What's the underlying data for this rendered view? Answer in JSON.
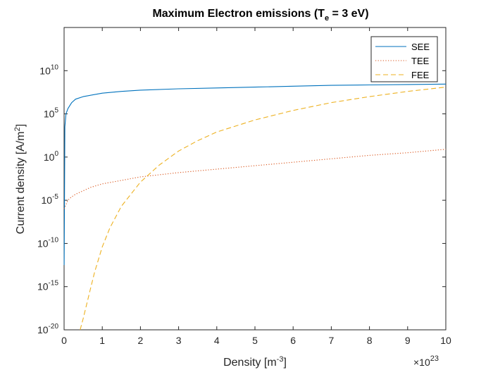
{
  "chart_data": {
    "type": "line",
    "title": {
      "main": "Maximum Electron emissions (T",
      "sub": "e",
      "rest": " = 3 eV)"
    },
    "xlabel": {
      "text": "Density [m",
      "sup": "-3",
      "end": "]"
    },
    "ylabel": {
      "text": "Current density [A/m",
      "sup": "2",
      "end": "]"
    },
    "x_multiplier": {
      "base": "×10",
      "exp": "23"
    },
    "xlim": [
      0,
      10
    ],
    "ylim_log10": [
      -20,
      15
    ],
    "y_scale": "log",
    "grid": false,
    "legend_position": "top-right",
    "x_ticks": [
      0,
      1,
      2,
      3,
      4,
      5,
      6,
      7,
      8,
      9,
      10
    ],
    "y_ticks": [
      {
        "base": "10",
        "exp": "-20",
        "value": -20
      },
      {
        "base": "10",
        "exp": "-15",
        "value": -15
      },
      {
        "base": "10",
        "exp": "-10",
        "value": -10
      },
      {
        "base": "10",
        "exp": "-5",
        "value": -5
      },
      {
        "base": "10",
        "exp": "0",
        "value": 0
      },
      {
        "base": "10",
        "exp": "5",
        "value": 5
      },
      {
        "base": "10",
        "exp": "10",
        "value": 10
      }
    ],
    "series": [
      {
        "name": "SEE",
        "color": "#0072BD",
        "dash": "solid",
        "x": [
          0.001,
          0.02,
          0.05,
          0.1,
          0.2,
          0.3,
          0.5,
          1,
          1.5,
          2,
          3,
          4,
          5,
          6,
          7,
          8,
          9,
          10
        ],
        "log10_y": [
          -12.5,
          3.5,
          5.0,
          5.6,
          6.3,
          6.7,
          7.0,
          7.4,
          7.6,
          7.75,
          7.9,
          8.0,
          8.1,
          8.2,
          8.3,
          8.35,
          8.4,
          8.45
        ]
      },
      {
        "name": "TEE",
        "color": "#D95319",
        "dash": "dotted",
        "x": [
          0.001,
          0.05,
          0.1,
          0.2,
          0.3,
          0.5,
          0.7,
          1,
          1.5,
          2,
          3,
          4,
          5,
          6,
          7,
          8,
          9,
          10
        ],
        "log10_y": [
          -6.0,
          -5.5,
          -5.0,
          -4.6,
          -4.3,
          -3.9,
          -3.5,
          -3.1,
          -2.7,
          -2.3,
          -1.8,
          -1.4,
          -1.0,
          -0.6,
          -0.2,
          0.2,
          0.5,
          0.9
        ]
      },
      {
        "name": "FEE",
        "color": "#EDB120",
        "dash": "dashed",
        "x": [
          0.42,
          0.5,
          0.6,
          0.7,
          0.8,
          1.0,
          1.2,
          1.5,
          2.0,
          2.5,
          3.0,
          3.5,
          4.0,
          5.0,
          6.0,
          7.0,
          8.0,
          9.0,
          10.0
        ],
        "log10_y": [
          -20.0,
          -18.7,
          -16.9,
          -15.1,
          -13.3,
          -10.4,
          -8.2,
          -5.7,
          -2.9,
          -0.9,
          0.7,
          1.9,
          2.9,
          4.3,
          5.4,
          6.3,
          7.0,
          7.6,
          8.1
        ]
      }
    ]
  }
}
